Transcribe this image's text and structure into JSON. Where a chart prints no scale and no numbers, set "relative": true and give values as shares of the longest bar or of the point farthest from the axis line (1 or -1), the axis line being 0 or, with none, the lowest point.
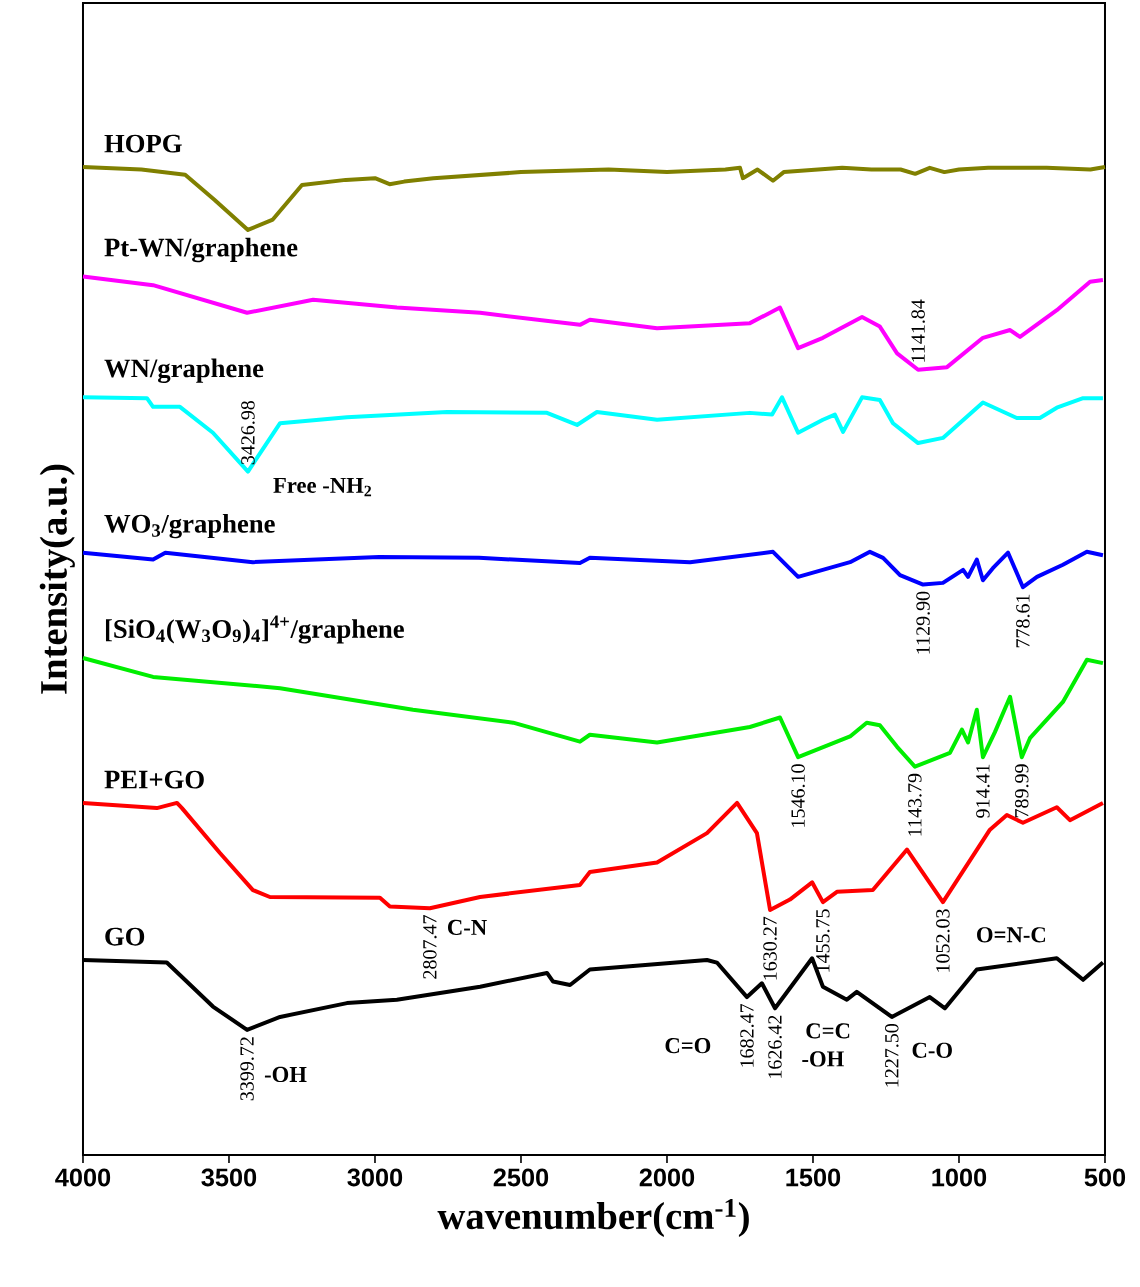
{
  "chart_data": {
    "type": "line",
    "relative": true,
    "xlabel": "wavenumber(cm$^{-1}$)",
    "ylabel": "Intensity(a.u.)",
    "xlim": [
      4000,
      500
    ],
    "xticks": [
      4000,
      3500,
      3000,
      2500,
      2000,
      1500,
      1000,
      500
    ],
    "tick_labels": "x",
    "grid": false,
    "series": [
      {
        "name": "HOPG",
        "color": "#808000",
        "x": [
          4000,
          3800,
          3650,
          3550,
          3435,
          3350,
          3250,
          3100,
          3000,
          2950,
          2900,
          2800,
          2500,
          2200,
          2000,
          1800,
          1750,
          1740,
          1690,
          1637,
          1600,
          1400,
          1300,
          1200,
          1150,
          1100,
          1050,
          1000,
          900,
          700,
          550,
          500
        ],
        "values": [
          1.0,
          0.997,
          0.991,
          0.962,
          0.927,
          0.939,
          0.979,
          0.985,
          0.987,
          0.98,
          0.983,
          0.987,
          0.994,
          0.997,
          0.994,
          0.997,
          0.999,
          0.987,
          0.997,
          0.984,
          0.994,
          0.999,
          0.997,
          0.997,
          0.992,
          0.999,
          0.994,
          0.997,
          0.999,
          0.999,
          0.997,
          1.0
        ]
      },
      {
        "name": "Pt-WN/graphene",
        "color": "#ff00ff",
        "x": [
          4000,
          3760,
          3438,
          3212,
          2925,
          2640,
          2298,
          2264,
          2034,
          1716,
          1613,
          1551,
          1466,
          1332,
          1271,
          1212,
          1140,
          1041,
          918,
          825,
          791,
          665,
          551,
          507
        ],
        "values": [
          0.873,
          0.863,
          0.831,
          0.846,
          0.837,
          0.831,
          0.817,
          0.823,
          0.813,
          0.819,
          0.837,
          0.79,
          0.802,
          0.826,
          0.815,
          0.784,
          0.765,
          0.768,
          0.802,
          0.811,
          0.803,
          0.834,
          0.867,
          0.869
        ]
      },
      {
        "name": "WN/graphene",
        "color": "#00ffff",
        "x": [
          4000,
          3781,
          3760,
          3668,
          3555,
          3435,
          3325,
          3096,
          2753,
          2411,
          2308,
          2240,
          2034,
          1716,
          1640,
          1606,
          1551,
          1466,
          1425,
          1397,
          1332,
          1271,
          1226,
          1140,
          1055,
          918,
          802,
          723,
          665,
          575,
          507
        ],
        "values": [
          0.733,
          0.732,
          0.722,
          0.722,
          0.692,
          0.647,
          0.703,
          0.71,
          0.716,
          0.715,
          0.701,
          0.716,
          0.707,
          0.715,
          0.713,
          0.733,
          0.692,
          0.707,
          0.713,
          0.693,
          0.733,
          0.73,
          0.703,
          0.68,
          0.686,
          0.727,
          0.709,
          0.709,
          0.721,
          0.732,
          0.732
        ]
      },
      {
        "name": "WO$_{3}$/graphene",
        "color": "#0000ff",
        "x": [
          4000,
          3760,
          3718,
          3418,
          2986,
          2644,
          2298,
          2264,
          1921,
          1637,
          1551,
          1373,
          1305,
          1260,
          1202,
          1123,
          1055,
          986,
          969,
          939,
          918,
          884,
          832,
          781,
          733,
          644,
          562,
          507
        ],
        "values": [
          0.553,
          0.545,
          0.553,
          0.542,
          0.548,
          0.547,
          0.541,
          0.547,
          0.542,
          0.554,
          0.525,
          0.542,
          0.554,
          0.547,
          0.527,
          0.516,
          0.518,
          0.533,
          0.525,
          0.545,
          0.521,
          0.535,
          0.553,
          0.513,
          0.525,
          0.539,
          0.554,
          0.55
        ]
      },
      {
        "name": "[SiO$_{4}$(W$_{3}$O$_{9}$)$_{4}$]$^{4+}$/graphene",
        "color": "#00ee00",
        "x": [
          4000,
          3760,
          3325,
          2870,
          2527,
          2298,
          2264,
          2034,
          1716,
          1613,
          1551,
          1373,
          1316,
          1271,
          1212,
          1151,
          1031,
          990,
          969,
          939,
          918,
          877,
          825,
          785,
          757,
          644,
          562,
          507
        ],
        "values": [
          0.431,
          0.409,
          0.396,
          0.371,
          0.356,
          0.334,
          0.342,
          0.333,
          0.351,
          0.362,
          0.316,
          0.34,
          0.356,
          0.353,
          0.328,
          0.305,
          0.321,
          0.348,
          0.333,
          0.371,
          0.316,
          0.345,
          0.386,
          0.316,
          0.338,
          0.38,
          0.429,
          0.425
        ]
      },
      {
        "name": "PEI+GO",
        "color": "#ff0000",
        "x": [
          4000,
          3747,
          3678,
          3661,
          3531,
          3418,
          3360,
          2983,
          2949,
          2812,
          2640,
          2298,
          2264,
          2034,
          1863,
          1760,
          1692,
          1647,
          1579,
          1503,
          1466,
          1418,
          1295,
          1178,
          1055,
          894,
          836,
          781,
          665,
          620,
          507
        ],
        "values": [
          0.263,
          0.257,
          0.263,
          0.257,
          0.205,
          0.162,
          0.154,
          0.153,
          0.143,
          0.141,
          0.154,
          0.168,
          0.183,
          0.194,
          0.228,
          0.263,
          0.228,
          0.139,
          0.151,
          0.171,
          0.148,
          0.16,
          0.162,
          0.209,
          0.148,
          0.232,
          0.249,
          0.24,
          0.258,
          0.243,
          0.263
        ]
      },
      {
        "name": "GO",
        "color": "#000000",
        "x": [
          4000,
          3713,
          3555,
          3438,
          3325,
          3096,
          2925,
          2640,
          2411,
          2390,
          2332,
          2264,
          1863,
          1829,
          1726,
          1675,
          1630,
          1503,
          1466,
          1384,
          1350,
          1230,
          1100,
          1048,
          939,
          665,
          575,
          507
        ],
        "values": [
          0.081,
          0.078,
          0.027,
          0.0,
          0.015,
          0.031,
          0.035,
          0.05,
          0.066,
          0.056,
          0.052,
          0.07,
          0.081,
          0.078,
          0.038,
          0.054,
          0.025,
          0.083,
          0.05,
          0.035,
          0.044,
          0.015,
          0.038,
          0.025,
          0.07,
          0.083,
          0.058,
          0.078
        ]
      }
    ],
    "annotations": [
      {
        "text": "3426.98",
        "x": 3435,
        "y": 0.647
      },
      {
        "text": "Free -NH$_{2}$",
        "x": 3435,
        "y": 0.647
      },
      {
        "text": "1141.84",
        "x": 1140,
        "y": 0.765
      },
      {
        "text": "1129.90",
        "x": 1123,
        "y": 0.516
      },
      {
        "text": "778.61",
        "x": 781,
        "y": 0.513
      },
      {
        "text": "1546.10",
        "x": 1551,
        "y": 0.316
      },
      {
        "text": "1143.79",
        "x": 1151,
        "y": 0.305
      },
      {
        "text": "914.41",
        "x": 918,
        "y": 0.316
      },
      {
        "text": "789.99",
        "x": 785,
        "y": 0.316
      },
      {
        "text": "2807.47",
        "x": 2812,
        "y": 0.141
      },
      {
        "text": "C-N",
        "x": 2812,
        "y": 0.141
      },
      {
        "text": "1630.27",
        "x": 1647,
        "y": 0.139
      },
      {
        "text": "1455.75",
        "x": 1466,
        "y": 0.148
      },
      {
        "text": "1052.03",
        "x": 1055,
        "y": 0.148
      },
      {
        "text": "O=N-C",
        "x": 1055,
        "y": 0.148
      },
      {
        "text": "3399.72",
        "x": 3438,
        "y": 0.0
      },
      {
        "text": "-OH",
        "x": 3438,
        "y": 0.0
      },
      {
        "text": "C=O",
        "x": 1726,
        "y": 0.038
      },
      {
        "text": "1682.47",
        "x": 1726,
        "y": 0.038
      },
      {
        "text": "1626.42",
        "x": 1630,
        "y": 0.025
      },
      {
        "text": "C=C",
        "x": 1503,
        "y": 0.083
      },
      {
        "text": "-OH",
        "x": 1384,
        "y": 0.035
      },
      {
        "text": "1227.50",
        "x": 1230,
        "y": 0.015
      },
      {
        "text": "C-O",
        "x": 1230,
        "y": 0.015
      }
    ]
  }
}
